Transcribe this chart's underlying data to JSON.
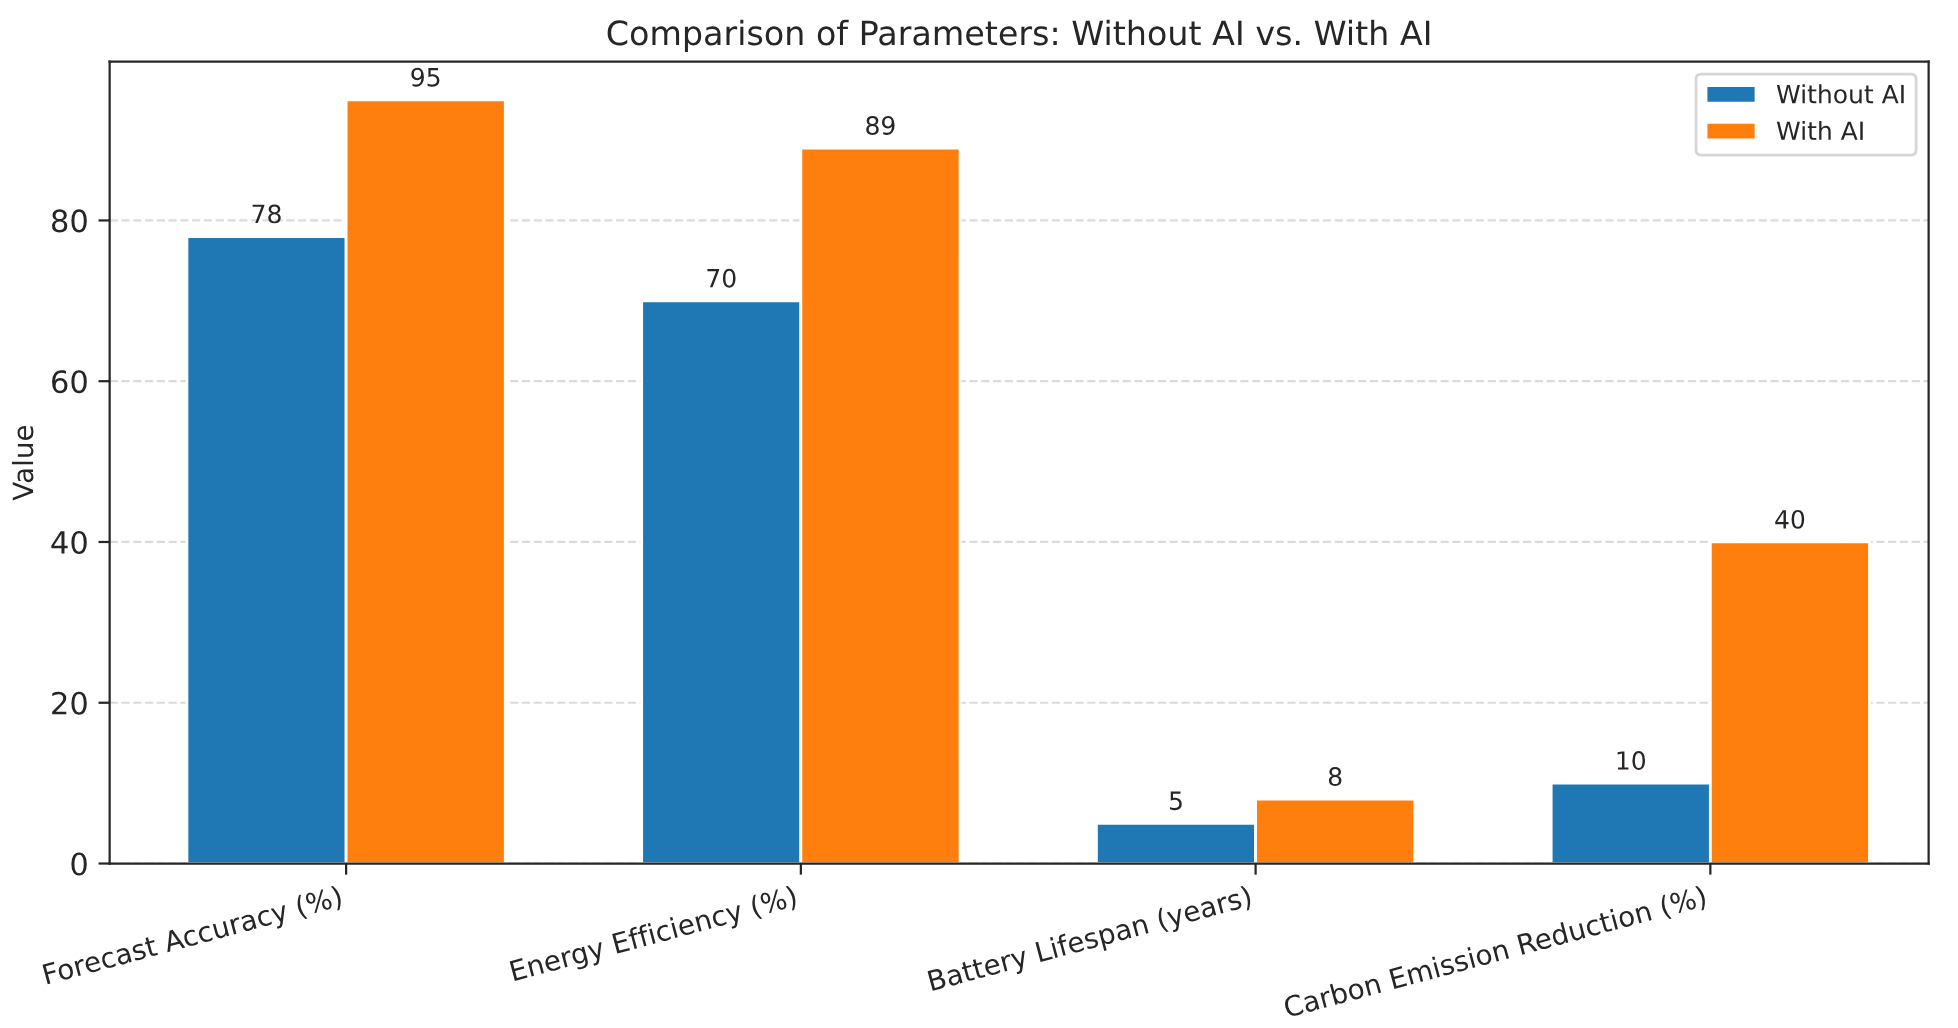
{
  "chart_data": {
    "type": "bar",
    "title": "Comparison of Parameters: Without AI vs. With AI",
    "ylabel": "Value",
    "categories": [
      "Forecast Accuracy (%)",
      "Energy Efficiency (%)",
      "Battery Lifespan (years)",
      "Carbon Emission Reduction (%)"
    ],
    "series": [
      {
        "name": "Without AI",
        "color": "#1f77b4",
        "values": [
          78,
          70,
          5,
          10
        ]
      },
      {
        "name": "With AI",
        "color": "#ff7f0e",
        "values": [
          95,
          89,
          8,
          40
        ]
      }
    ],
    "ylim": [
      0,
      99.75
    ],
    "yticks": [
      0,
      20,
      40,
      60,
      80
    ],
    "grid": "y",
    "legend": "top right",
    "data_labels": true
  }
}
